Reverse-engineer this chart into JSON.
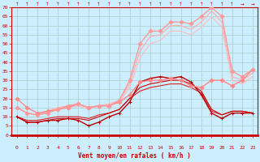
{
  "xlabel": "Vent moyen/en rafales ( km/h )",
  "bg_color": "#cceeff",
  "grid_color": "#aacccc",
  "x_values": [
    0,
    1,
    2,
    3,
    4,
    5,
    6,
    7,
    8,
    9,
    10,
    11,
    12,
    13,
    14,
    15,
    16,
    17,
    18,
    19,
    20,
    21,
    22,
    23
  ],
  "ylim": [
    0,
    70
  ],
  "yticks": [
    0,
    5,
    10,
    15,
    20,
    25,
    30,
    35,
    40,
    45,
    50,
    55,
    60,
    65,
    70
  ],
  "series": [
    {
      "y": [
        10,
        7,
        7,
        8,
        8,
        9,
        8,
        5,
        7,
        10,
        12,
        18,
        29,
        31,
        32,
        31,
        32,
        29,
        22,
        12,
        9,
        12,
        12,
        12
      ],
      "color": "#bb0000",
      "lw": 1.0,
      "marker": "+",
      "ms": 3.5,
      "zorder": 5
    },
    {
      "y": [
        10,
        7,
        7,
        8,
        9,
        9,
        9,
        8,
        10,
        12,
        14,
        20,
        26,
        28,
        29,
        30,
        30,
        28,
        24,
        14,
        11,
        13,
        13,
        12
      ],
      "color": "#cc0000",
      "lw": 0.8,
      "marker": null,
      "ms": 0,
      "zorder": 4
    },
    {
      "y": [
        10,
        8,
        8,
        9,
        10,
        10,
        10,
        9,
        11,
        12,
        14,
        20,
        24,
        26,
        27,
        28,
        28,
        26,
        23,
        13,
        11,
        13,
        13,
        12
      ],
      "color": "#dd2222",
      "lw": 0.8,
      "marker": null,
      "ms": 0,
      "zorder": 3
    },
    {
      "y": [
        20,
        15,
        12,
        13,
        14,
        15,
        17,
        15,
        16,
        16,
        18,
        22,
        29,
        30,
        30,
        31,
        30,
        27,
        26,
        30,
        30,
        27,
        30,
        36
      ],
      "color": "#ff8888",
      "lw": 1.0,
      "marker": "D",
      "ms": 2.5,
      "zorder": 5
    },
    {
      "y": [
        15,
        12,
        11,
        12,
        14,
        16,
        17,
        15,
        16,
        16,
        19,
        30,
        50,
        57,
        57,
        62,
        62,
        61,
        65,
        70,
        65,
        35,
        32,
        36
      ],
      "color": "#ff9999",
      "lw": 1.0,
      "marker": "D",
      "ms": 2.5,
      "zorder": 5
    },
    {
      "y": [
        15,
        12,
        11,
        13,
        15,
        16,
        17,
        15,
        16,
        17,
        19,
        28,
        46,
        54,
        55,
        60,
        60,
        58,
        62,
        68,
        62,
        32,
        30,
        34
      ],
      "color": "#ffaaaa",
      "lw": 0.8,
      "marker": null,
      "ms": 0,
      "zorder": 3
    },
    {
      "y": [
        15,
        12,
        11,
        13,
        15,
        15,
        16,
        14,
        16,
        17,
        18,
        26,
        42,
        50,
        52,
        57,
        57,
        55,
        59,
        65,
        59,
        30,
        28,
        32
      ],
      "color": "#ffbbbb",
      "lw": 0.8,
      "marker": null,
      "ms": 0,
      "zorder": 3
    }
  ]
}
